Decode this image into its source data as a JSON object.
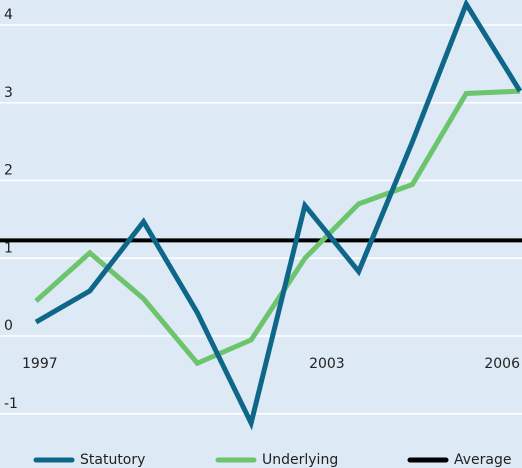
{
  "chart_data": {
    "type": "line",
    "categories": [
      "1997",
      null,
      null,
      null,
      null,
      "2003",
      null,
      null,
      null,
      "2006"
    ],
    "series": [
      {
        "name": "Statutory",
        "color": "#0e6688",
        "values": [
          0.18,
          0.58,
          1.47,
          0.3,
          -1.12,
          1.68,
          0.83,
          2.5,
          4.27,
          3.15
        ]
      },
      {
        "name": "Underlying",
        "color": "#6cc46c",
        "values": [
          0.45,
          1.07,
          0.48,
          -0.35,
          -0.05,
          1.0,
          1.7,
          1.95,
          3.12,
          3.15
        ]
      },
      {
        "name": "Average",
        "color": "#000000",
        "value": 1.23
      }
    ],
    "ylim": [
      -1.35,
      4.3
    ],
    "yticks": [
      -1,
      0,
      1,
      2,
      3,
      4
    ],
    "grid": true
  }
}
